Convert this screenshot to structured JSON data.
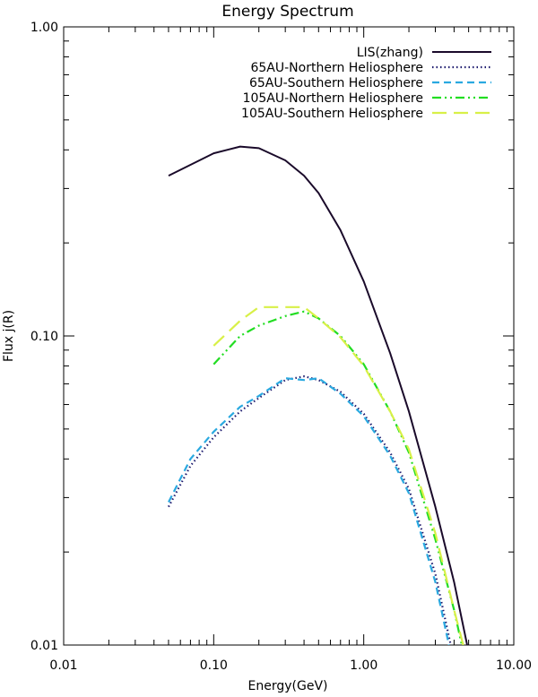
{
  "chart_data": {
    "type": "line",
    "title": "Energy Spectrum",
    "xlabel": "Energy(GeV)",
    "ylabel": "Flux j(R)",
    "xscale": "log",
    "yscale": "log",
    "xlim": [
      0.01,
      10
    ],
    "ylim": [
      0.01,
      1
    ],
    "xticks": [
      0.01,
      0.1,
      1,
      10
    ],
    "xtick_labels": [
      "0.01",
      "0.10",
      "1.00",
      "10.00"
    ],
    "yticks": [
      0.01,
      0.1,
      1
    ],
    "ytick_labels": [
      "0.01",
      "0.10",
      "1.00"
    ],
    "grid": false,
    "legend_position": "top-right",
    "series": [
      {
        "name": "LIS(zhang)",
        "color": "#1a0a2a",
        "dash": "solid",
        "x": [
          0.05,
          0.1,
          0.15,
          0.2,
          0.3,
          0.4,
          0.5,
          0.7,
          1.0,
          1.5,
          2.0,
          3.0,
          4.0,
          5.0
        ],
        "y": [
          0.33,
          0.39,
          0.41,
          0.405,
          0.37,
          0.33,
          0.29,
          0.22,
          0.15,
          0.088,
          0.057,
          0.028,
          0.016,
          0.0095
        ]
      },
      {
        "name": "65AU-Northern Heliosphere",
        "color": "#1c1a6e",
        "dash": "dotted",
        "x": [
          0.05,
          0.07,
          0.1,
          0.15,
          0.2,
          0.3,
          0.4,
          0.5,
          0.7,
          1.0,
          1.5,
          2.0,
          3.0,
          3.8
        ],
        "y": [
          0.028,
          0.038,
          0.047,
          0.057,
          0.063,
          0.072,
          0.074,
          0.072,
          0.066,
          0.056,
          0.042,
          0.032,
          0.017,
          0.01
        ]
      },
      {
        "name": "65AU-Southern Heliosphere",
        "color": "#2aa9e0",
        "dash": "dashed",
        "x": [
          0.05,
          0.07,
          0.1,
          0.15,
          0.2,
          0.3,
          0.4,
          0.5,
          0.7,
          1.0,
          1.5,
          2.0,
          3.0,
          3.7
        ],
        "y": [
          0.029,
          0.04,
          0.049,
          0.059,
          0.064,
          0.073,
          0.072,
          0.073,
          0.065,
          0.055,
          0.041,
          0.031,
          0.016,
          0.01
        ]
      },
      {
        "name": "105AU-Northern Heliosphere",
        "color": "#22dd22",
        "dash": "dashdotdot",
        "x": [
          0.1,
          0.15,
          0.2,
          0.3,
          0.4,
          0.5,
          0.7,
          1.0,
          1.5,
          2.0,
          3.0,
          4.0,
          4.5
        ],
        "y": [
          0.081,
          0.1,
          0.108,
          0.116,
          0.12,
          0.114,
          0.1,
          0.081,
          0.057,
          0.042,
          0.022,
          0.013,
          0.01
        ]
      },
      {
        "name": "105AU-Southern Heliosphere",
        "color": "#d8f047",
        "dash": "longdash",
        "x": [
          0.1,
          0.15,
          0.2,
          0.3,
          0.4,
          0.5,
          0.7,
          1.0,
          1.5,
          2.0,
          3.0,
          4.0,
          4.6
        ],
        "y": [
          0.093,
          0.112,
          0.124,
          0.124,
          0.124,
          0.114,
          0.099,
          0.08,
          0.057,
          0.043,
          0.023,
          0.013,
          0.01
        ]
      }
    ]
  }
}
